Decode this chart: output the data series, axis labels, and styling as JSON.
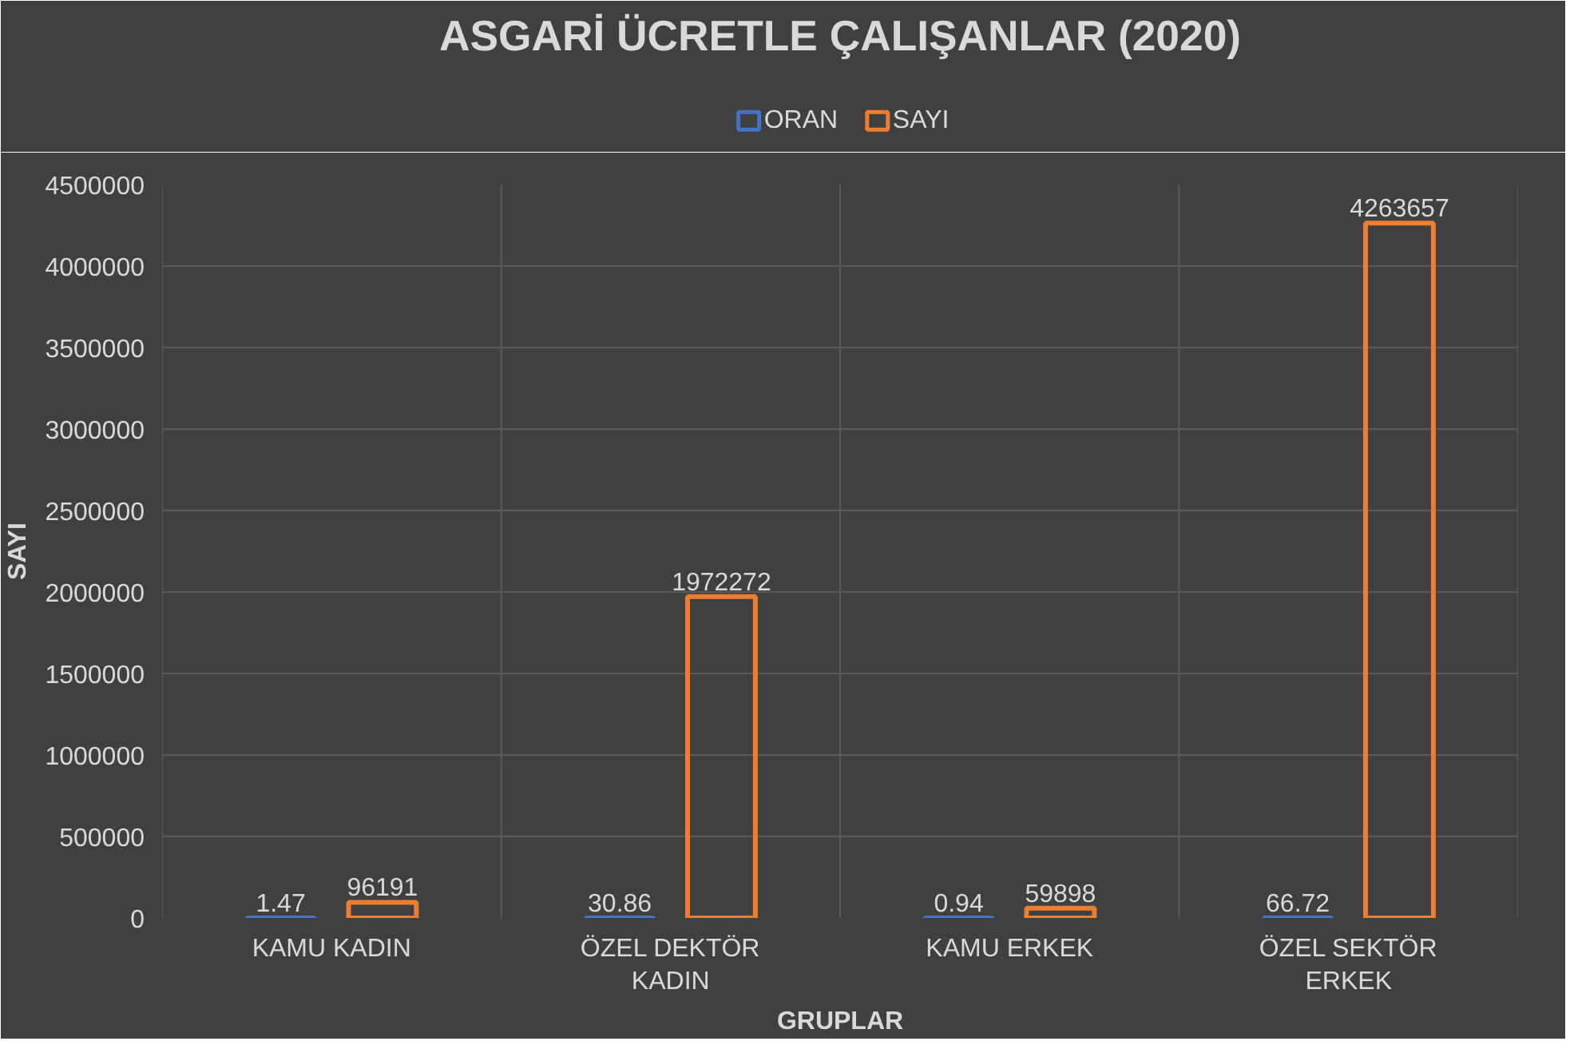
{
  "chart_data": {
    "type": "bar",
    "title": "ASGARİ ÜCRETLE ÇALIŞANLAR (2020)",
    "xlabel": "GRUPLAR",
    "ylabel": "SAYI",
    "categories": [
      "KAMU KADIN",
      "ÖZEL DEKTÖR KADIN",
      "KAMU ERKEK",
      "ÖZEL SEKTÖR ERKEK"
    ],
    "series": [
      {
        "name": "ORAN",
        "color": "#4472c4",
        "values": [
          1.47,
          30.86,
          0.94,
          66.72
        ]
      },
      {
        "name": "SAYI",
        "color": "#ed7d31",
        "values": [
          96191,
          1972272,
          59898,
          4263657
        ]
      }
    ],
    "ylim": [
      0,
      4500000
    ],
    "yticks": [
      0,
      500000,
      1000000,
      1500000,
      2000000,
      2500000,
      3000000,
      3500000,
      4000000,
      4500000
    ],
    "grid": true,
    "legend": "top",
    "data_labels": true
  }
}
